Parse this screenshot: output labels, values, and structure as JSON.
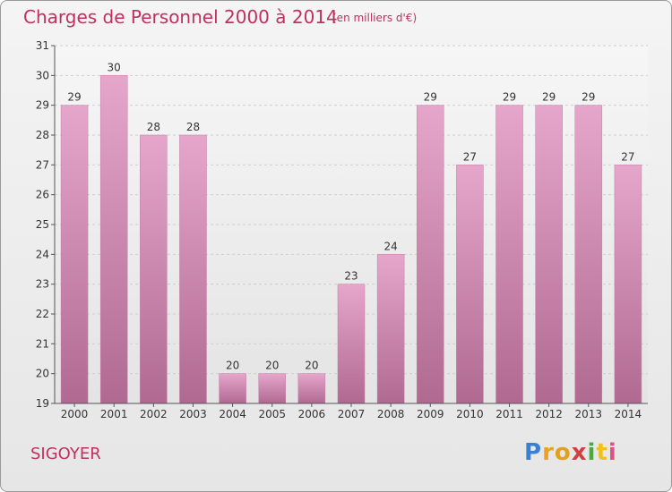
{
  "chart_data": {
    "type": "bar",
    "title": "Charges de Personnel 2000 à 2014",
    "subtitle": "(en milliers d'€)",
    "categories": [
      "2000",
      "2001",
      "2002",
      "2003",
      "2004",
      "2005",
      "2006",
      "2007",
      "2008",
      "2009",
      "2010",
      "2011",
      "2012",
      "2013",
      "2014"
    ],
    "values": [
      29,
      30,
      28,
      28,
      20,
      20,
      20,
      23,
      24,
      29,
      27,
      29,
      29,
      29,
      27
    ],
    "ylim": [
      19,
      31
    ],
    "yticks": [
      19,
      20,
      21,
      22,
      23,
      24,
      25,
      26,
      27,
      28,
      29,
      30,
      31
    ],
    "grid": true,
    "bar_color": "#d58db6"
  },
  "footer": {
    "place": "SIGOYER",
    "logo": {
      "letters": [
        "P",
        "r",
        "o",
        "x",
        "i",
        "t",
        "i"
      ],
      "colors": [
        "#3a7fd0",
        "#f0a020",
        "#e0a020",
        "#d04040",
        "#4aaa40",
        "#f0c020",
        "#e05080"
      ]
    }
  }
}
